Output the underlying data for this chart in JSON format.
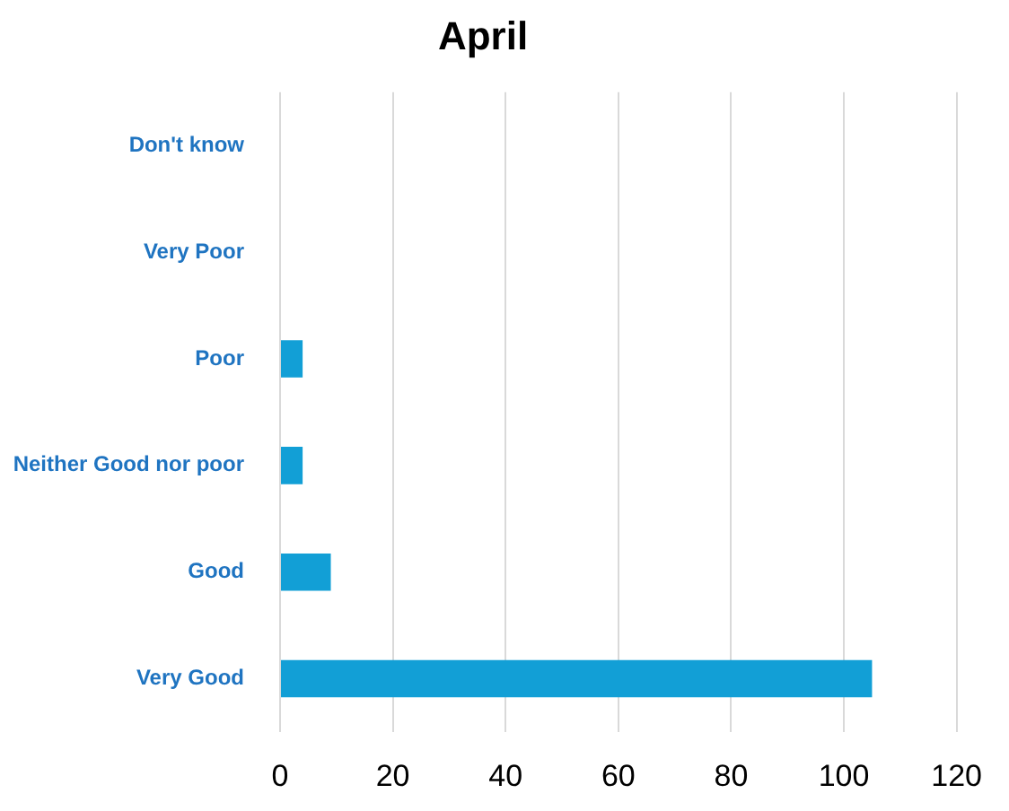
{
  "chart_data": {
    "type": "bar",
    "title": "April",
    "orientation": "horizontal",
    "categories": [
      "Don't know",
      "Very Poor",
      "Poor",
      "Neither Good nor poor",
      "Good",
      "Very Good"
    ],
    "values": [
      0,
      0,
      4,
      4,
      9,
      105
    ],
    "color": "#129fd6",
    "xlim": [
      0,
      120
    ],
    "xticks": [
      0,
      20,
      40,
      60,
      80,
      100,
      120
    ],
    "grid": "x",
    "legend": false
  }
}
